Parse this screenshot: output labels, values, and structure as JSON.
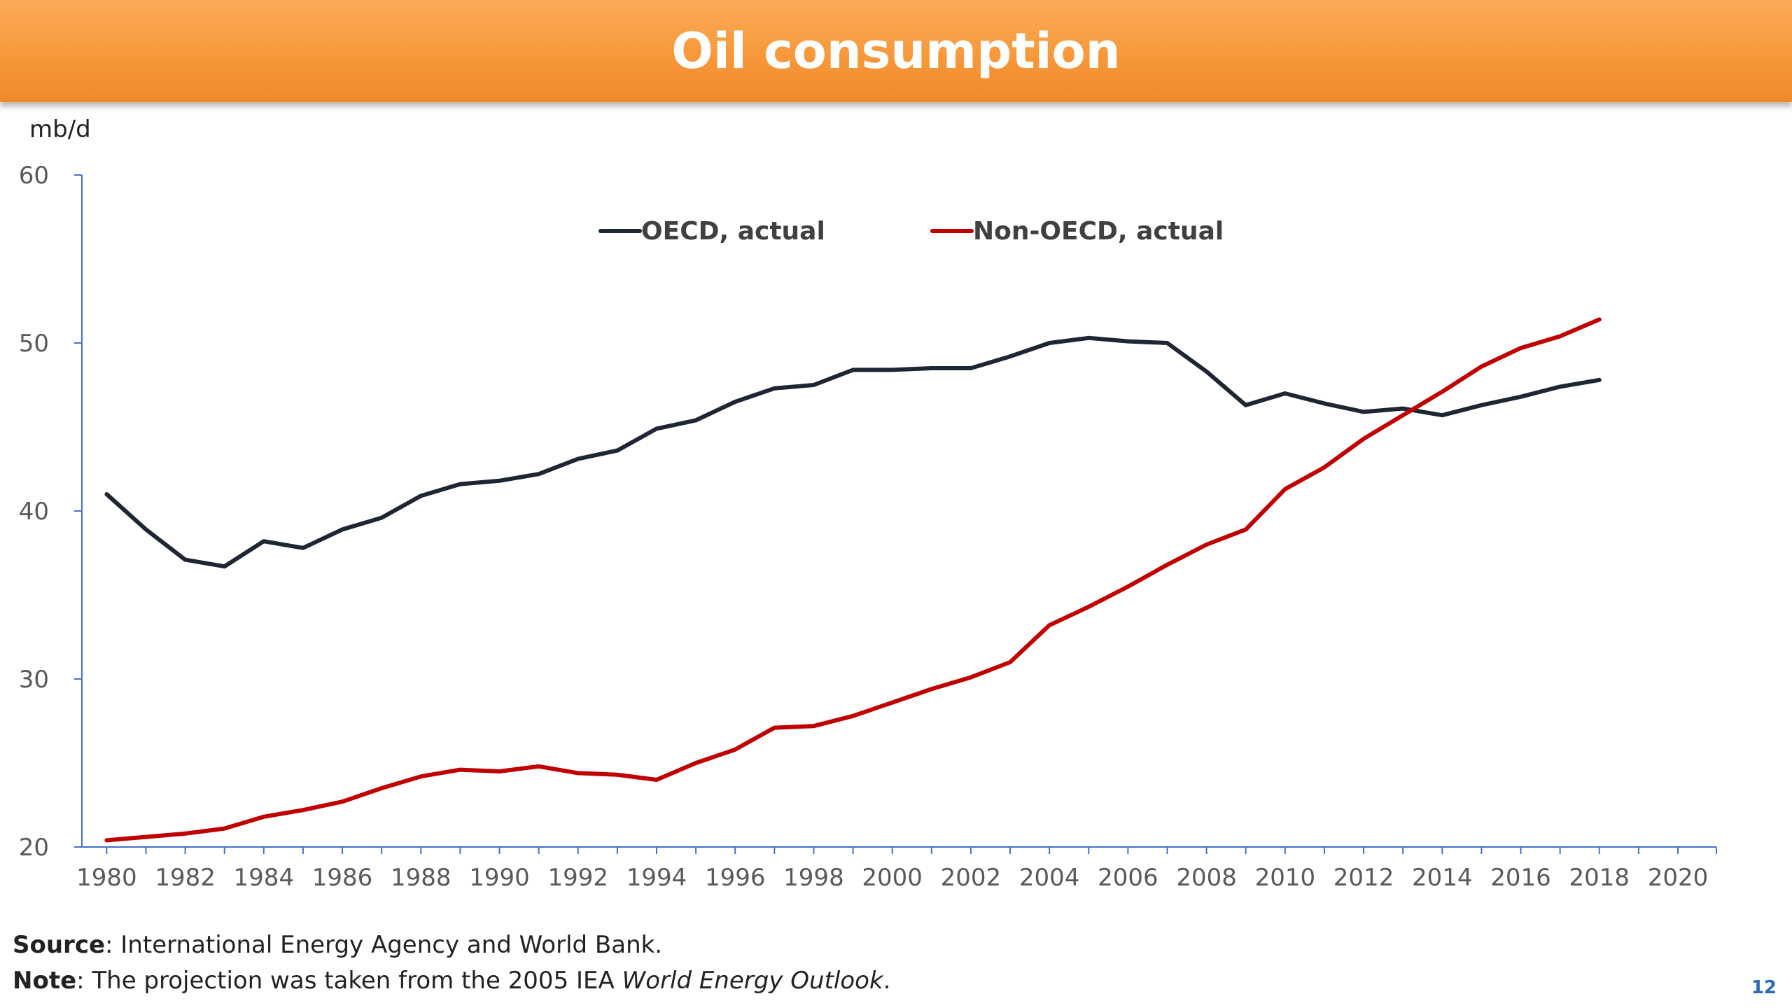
{
  "slide": {
    "title": "Oil consumption",
    "page_number": "12"
  },
  "footer": {
    "source_label": "Source",
    "source_text": ": International Energy Agency and World Bank.",
    "note_label": "Note",
    "note_text_before": ": The projection was taken from the 2005 IEA ",
    "note_italic": "World Energy Outlook",
    "note_text_after": "."
  },
  "chart_data": {
    "type": "line",
    "ylabel": "mb/d",
    "xlabel": "",
    "xlim": [
      1980,
      2020
    ],
    "ylim": [
      20,
      60
    ],
    "x_ticks": [
      1980,
      1982,
      1984,
      1986,
      1988,
      1990,
      1992,
      1994,
      1996,
      1998,
      2000,
      2002,
      2004,
      2006,
      2008,
      2010,
      2012,
      2014,
      2016,
      2018,
      2020
    ],
    "y_ticks": [
      20,
      30,
      40,
      50,
      60
    ],
    "grid": false,
    "legend_position": "top-center",
    "x": [
      1980,
      1981,
      1982,
      1983,
      1984,
      1985,
      1986,
      1987,
      1988,
      1989,
      1990,
      1991,
      1992,
      1993,
      1994,
      1995,
      1996,
      1997,
      1998,
      1999,
      2000,
      2001,
      2002,
      2003,
      2004,
      2005,
      2006,
      2007,
      2008,
      2009,
      2010,
      2011,
      2012,
      2013,
      2014,
      2015,
      2016,
      2017,
      2018
    ],
    "series": [
      {
        "name": "OECD, actual",
        "color": "#1f2633",
        "values": [
          41.0,
          38.9,
          37.1,
          36.7,
          38.2,
          37.8,
          38.9,
          39.6,
          40.9,
          41.6,
          41.8,
          42.2,
          43.1,
          43.6,
          44.9,
          45.4,
          46.5,
          47.3,
          47.5,
          48.4,
          48.4,
          48.5,
          48.5,
          49.2,
          50.0,
          50.3,
          50.1,
          50.0,
          48.3,
          46.3,
          47.0,
          46.4,
          45.9,
          46.1,
          45.7,
          46.3,
          46.8,
          47.4,
          47.8
        ]
      },
      {
        "name": "Non-OECD, actual",
        "color": "#c00000",
        "values": [
          20.4,
          20.6,
          20.8,
          21.1,
          21.8,
          22.2,
          22.7,
          23.5,
          24.2,
          24.6,
          24.5,
          24.8,
          24.4,
          24.3,
          24.0,
          25.0,
          25.8,
          27.1,
          27.2,
          27.8,
          28.6,
          29.4,
          30.1,
          31.0,
          33.2,
          34.3,
          35.5,
          36.8,
          38.0,
          38.9,
          41.3,
          42.6,
          44.3,
          45.7,
          47.1,
          48.6,
          49.7,
          50.4,
          51.4
        ]
      }
    ]
  }
}
